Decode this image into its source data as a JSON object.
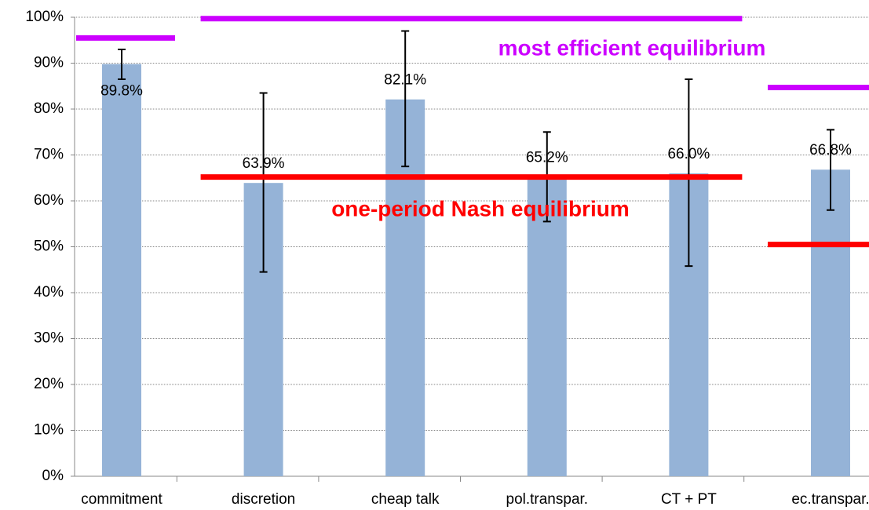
{
  "chart_data": {
    "type": "bar",
    "categories": [
      "commitment",
      "discretion",
      "cheap talk",
      "pol.transpar.",
      "CT + PT",
      "ec.transpar."
    ],
    "values": [
      89.8,
      63.9,
      82.1,
      65.2,
      66.0,
      66.8
    ],
    "value_labels": [
      "89.8%",
      "63.9%",
      "82.1%",
      "65.2%",
      "66.0%",
      "66.8%"
    ],
    "error_low": [
      86.5,
      44.5,
      67.5,
      55.5,
      45.8,
      58.0
    ],
    "error_high": [
      93.0,
      83.5,
      97.0,
      75.0,
      86.5,
      75.5
    ],
    "color": "#95b3d7",
    "ylim": [
      0,
      100
    ],
    "yticks": [
      {
        "value": 0,
        "label": "0%"
      },
      {
        "value": 10,
        "label": "10%"
      },
      {
        "value": 20,
        "label": "20%"
      },
      {
        "value": 30,
        "label": "30%"
      },
      {
        "value": 40,
        "label": "40%"
      },
      {
        "value": 50,
        "label": "50%"
      },
      {
        "value": 60,
        "label": "60%"
      },
      {
        "value": 70,
        "label": "70%"
      },
      {
        "value": 80,
        "label": "80%"
      },
      {
        "value": 90,
        "label": "90%"
      },
      {
        "value": 100,
        "label": "100%"
      }
    ],
    "grid": true,
    "reference_lines": [
      {
        "label": "most efficient equilibrium",
        "color": "#cc00ff",
        "segments": [
          {
            "from": 0,
            "to": 0,
            "value": 95.5
          },
          {
            "from": 1,
            "to": 4,
            "value": 99.7
          },
          {
            "from": 5,
            "to": 5,
            "value": 84.7
          }
        ]
      },
      {
        "label": "one-period Nash equilibrium",
        "color": "#ff0000",
        "segments": [
          {
            "from": 1,
            "to": 4,
            "value": 65.2
          },
          {
            "from": 5,
            "to": 5,
            "value": 50.5
          }
        ]
      }
    ]
  }
}
